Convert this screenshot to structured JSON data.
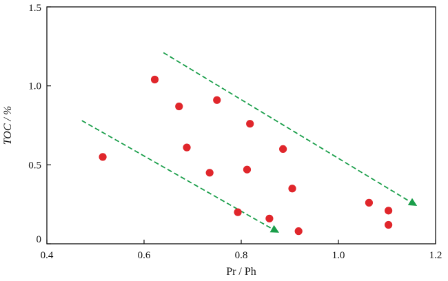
{
  "chart_data": {
    "type": "scatter",
    "xlabel": "Pr / Ph",
    "ylabel": "TOC / %",
    "xlim": [
      0.4,
      1.2
    ],
    "ylim": [
      0,
      1.5
    ],
    "x_ticks": [
      "0.4",
      "0.6",
      "0.8",
      "1.0",
      "1.2"
    ],
    "y_ticks": [
      "0",
      "0.5",
      "1.0",
      "1.5"
    ],
    "x_tick_values": [
      0.4,
      0.6,
      0.8,
      1.0,
      1.2
    ],
    "y_tick_values": [
      0,
      0.5,
      1.0,
      1.5
    ],
    "grid": false,
    "marker_color": "#e0262b",
    "trend_color": "#1a9e4a",
    "points": [
      {
        "x": 0.515,
        "y": 0.55
      },
      {
        "x": 0.622,
        "y": 1.04
      },
      {
        "x": 0.672,
        "y": 0.87
      },
      {
        "x": 0.688,
        "y": 0.61
      },
      {
        "x": 0.735,
        "y": 0.45
      },
      {
        "x": 0.75,
        "y": 0.91
      },
      {
        "x": 0.793,
        "y": 0.2
      },
      {
        "x": 0.812,
        "y": 0.47
      },
      {
        "x": 0.818,
        "y": 0.76
      },
      {
        "x": 0.858,
        "y": 0.16
      },
      {
        "x": 0.886,
        "y": 0.6
      },
      {
        "x": 0.905,
        "y": 0.35
      },
      {
        "x": 0.918,
        "y": 0.08
      },
      {
        "x": 1.063,
        "y": 0.26
      },
      {
        "x": 1.103,
        "y": 0.21
      },
      {
        "x": 1.103,
        "y": 0.12
      }
    ],
    "trend_arrows": [
      {
        "from": [
          0.472,
          0.78
        ],
        "to": [
          0.878,
          0.07
        ]
      },
      {
        "from": [
          0.64,
          1.21
        ],
        "to": [
          1.162,
          0.24
        ]
      }
    ]
  }
}
